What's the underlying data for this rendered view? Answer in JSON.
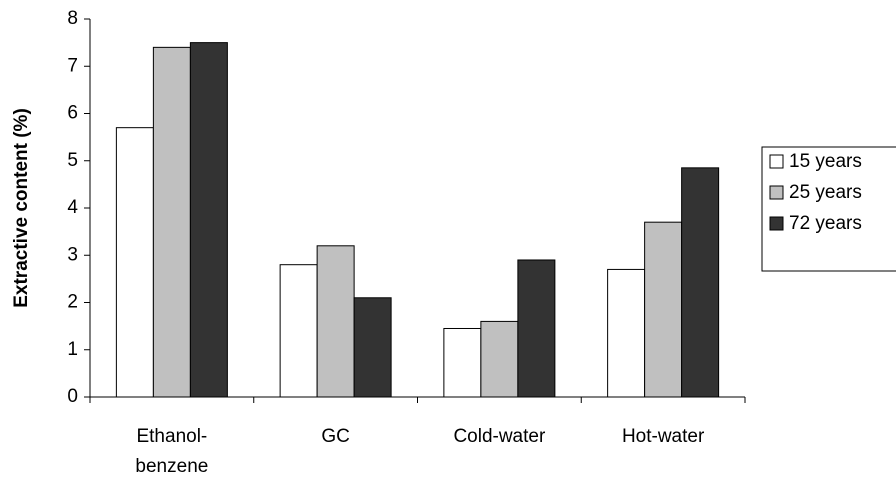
{
  "chart_data": {
    "type": "bar",
    "y_label": "Extractive content (%)",
    "categories": [
      "Ethanol-\nbenzene",
      "GC",
      "Cold-water",
      "Hot-water"
    ],
    "series": [
      {
        "name": "15 years",
        "color": "#ffffff",
        "values": [
          5.7,
          2.8,
          1.45,
          2.7
        ]
      },
      {
        "name": "25 years",
        "color": "#c0c0c0",
        "values": [
          7.4,
          3.2,
          1.6,
          3.7
        ]
      },
      {
        "name": "72 years",
        "color": "#333333",
        "values": [
          7.5,
          2.1,
          2.9,
          4.85
        ]
      }
    ],
    "ylim": [
      0,
      8
    ],
    "yticks": [
      0,
      1,
      2,
      3,
      4,
      5,
      6,
      7,
      8
    ],
    "grid": false,
    "legend": "right"
  }
}
